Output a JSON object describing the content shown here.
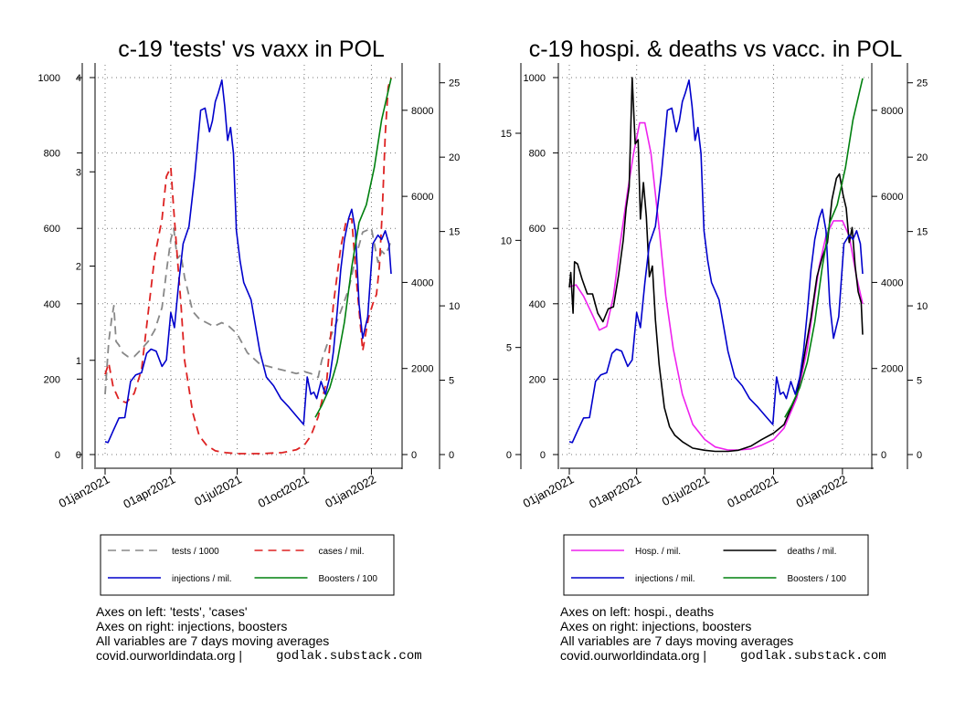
{
  "chart_data": [
    {
      "type": "line",
      "title": "c-19 'tests' vs vaxx in POL",
      "x_ticks": [
        "01jan2021",
        "01apr2021",
        "01jul2021",
        "01oct2021",
        "01jan2022"
      ],
      "axes": {
        "left_outer": {
          "ticks": [
            "0",
            "200",
            "400",
            "600",
            "800",
            "1000"
          ],
          "range": [
            0,
            1000
          ]
        },
        "left_inner": {
          "ticks": [
            "0",
            "1",
            "2",
            "3",
            "4"
          ],
          "range": [
            0,
            4
          ]
        },
        "right_inner": {
          "ticks": [
            "0",
            "2000",
            "4000",
            "6000",
            "8000"
          ],
          "range": [
            0,
            8760
          ]
        },
        "right_outer": {
          "ticks": [
            "0",
            "5",
            "10",
            "15",
            "20",
            "25"
          ],
          "range": [
            0,
            25.35
          ]
        }
      },
      "series": [
        {
          "name": "tests / 1000",
          "color": "#888888",
          "style": "dashed",
          "axis": "left_outer",
          "x": [
            "2021-01-01",
            "2021-01-06",
            "2021-01-10",
            "2021-01-13",
            "2021-01-16",
            "2021-01-20",
            "2021-01-25",
            "2021-02-01",
            "2021-02-10",
            "2021-02-20",
            "2021-03-01",
            "2021-03-10",
            "2021-03-20",
            "2021-03-27",
            "2021-04-01",
            "2021-04-05",
            "2021-04-10",
            "2021-04-15",
            "2021-04-20",
            "2021-04-25",
            "2021-05-01",
            "2021-05-10",
            "2021-05-20",
            "2021-05-30",
            "2021-06-10",
            "2021-06-20",
            "2021-07-01",
            "2021-07-15",
            "2021-08-01",
            "2021-08-20",
            "2021-09-10",
            "2021-09-20",
            "2021-10-01",
            "2021-10-10",
            "2021-10-20",
            "2021-10-25",
            "2021-11-01",
            "2021-11-10",
            "2021-11-20",
            "2021-12-01",
            "2021-12-10",
            "2021-12-20",
            "2022-01-01",
            "2022-01-10",
            "2022-01-15",
            "2022-01-20",
            "2022-01-25",
            "2022-01-28"
          ],
          "y": [
            160,
            300,
            360,
            395,
            300,
            290,
            270,
            260,
            260,
            280,
            300,
            330,
            390,
            500,
            570,
            600,
            520,
            530,
            470,
            430,
            380,
            360,
            350,
            340,
            350,
            340,
            320,
            270,
            240,
            230,
            220,
            215,
            220,
            215,
            205,
            250,
            290,
            330,
            380,
            440,
            520,
            590,
            600,
            510,
            540,
            530,
            550,
            570
          ]
        },
        {
          "name": "cases / mil.",
          "color": "#dd2222",
          "style": "dashed",
          "axis": "left_inner",
          "x": [
            "2021-01-01",
            "2021-01-06",
            "2021-01-12",
            "2021-01-20",
            "2021-01-30",
            "2021-02-10",
            "2021-02-20",
            "2021-03-01",
            "2021-03-10",
            "2021-03-20",
            "2021-03-26",
            "2021-04-01",
            "2021-04-05",
            "2021-04-10",
            "2021-04-15",
            "2021-04-20",
            "2021-05-01",
            "2021-05-10",
            "2021-05-20",
            "2021-06-01",
            "2021-06-15",
            "2021-07-01",
            "2021-08-01",
            "2021-09-01",
            "2021-09-20",
            "2021-10-01",
            "2021-10-10",
            "2021-10-20",
            "2021-11-01",
            "2021-11-10",
            "2021-11-20",
            "2021-11-28",
            "2021-12-05",
            "2021-12-12",
            "2021-12-20",
            "2021-12-28",
            "2022-01-03",
            "2022-01-08",
            "2022-01-12",
            "2022-01-16",
            "2022-01-20",
            "2022-01-24",
            "2022-01-28"
          ],
          "y": [
            0.85,
            0.97,
            0.72,
            0.58,
            0.55,
            0.65,
            0.9,
            1.5,
            2.1,
            2.5,
            2.95,
            3.05,
            2.6,
            2.1,
            1.6,
            1.0,
            0.45,
            0.2,
            0.1,
            0.04,
            0.02,
            0.01,
            0.01,
            0.02,
            0.05,
            0.1,
            0.2,
            0.4,
            0.8,
            1.6,
            2.2,
            2.5,
            2.5,
            1.8,
            1.1,
            1.45,
            1.6,
            1.7,
            2.0,
            2.6,
            3.4,
            3.9,
            4.0
          ]
        },
        {
          "name": "injections / mil.",
          "color": "#0000cc",
          "style": "solid",
          "axis": "right_inner",
          "x": [
            "2021-01-01",
            "2021-01-05",
            "2021-01-12",
            "2021-01-20",
            "2021-01-28",
            "2021-02-05",
            "2021-02-12",
            "2021-02-20",
            "2021-02-27",
            "2021-03-05",
            "2021-03-12",
            "2021-03-20",
            "2021-03-26",
            "2021-04-01",
            "2021-04-06",
            "2021-04-12",
            "2021-04-18",
            "2021-04-26",
            "2021-05-04",
            "2021-05-12",
            "2021-05-18",
            "2021-05-24",
            "2021-05-28",
            "2021-06-01",
            "2021-06-05",
            "2021-06-10",
            "2021-06-14",
            "2021-06-18",
            "2021-06-22",
            "2021-06-26",
            "2021-06-30",
            "2021-07-05",
            "2021-07-10",
            "2021-07-20",
            "2021-08-01",
            "2021-08-10",
            "2021-08-20",
            "2021-08-30",
            "2021-09-10",
            "2021-09-20",
            "2021-09-30",
            "2021-10-05",
            "2021-10-10",
            "2021-10-14",
            "2021-10-18",
            "2021-10-24",
            "2021-10-30",
            "2021-11-05",
            "2021-11-10",
            "2021-11-15",
            "2021-11-20",
            "2021-11-25",
            "2021-12-01",
            "2021-12-05",
            "2021-12-10",
            "2021-12-15",
            "2021-12-20",
            "2021-12-27",
            "2022-01-03",
            "2022-01-10",
            "2022-01-15",
            "2022-01-20",
            "2022-01-25",
            "2022-01-28"
          ],
          "y": [
            300,
            280,
            550,
            850,
            860,
            1700,
            1850,
            1900,
            2350,
            2450,
            2400,
            2050,
            2200,
            3300,
            2950,
            4000,
            4900,
            5300,
            6500,
            8000,
            8050,
            7500,
            7750,
            8200,
            8400,
            8700,
            8100,
            7300,
            7600,
            7000,
            5200,
            4500,
            4000,
            3600,
            2400,
            1800,
            1600,
            1300,
            1100,
            900,
            700,
            1800,
            1400,
            1450,
            1300,
            1700,
            1400,
            1800,
            2400,
            3300,
            4300,
            5000,
            5500,
            5700,
            5200,
            3500,
            2700,
            3200,
            4900,
            5100,
            5000,
            5200,
            4900,
            4200
          ]
        },
        {
          "name": "Boosters / 100",
          "color": "#00800f",
          "style": "solid",
          "axis": "right_outer",
          "x": [
            "2021-10-16",
            "2021-10-25",
            "2021-11-05",
            "2021-11-15",
            "2021-11-25",
            "2021-12-05",
            "2021-12-15",
            "2021-12-25",
            "2022-01-05",
            "2022-01-15",
            "2022-01-28"
          ],
          "y": [
            2.5,
            3.3,
            4.5,
            6.2,
            8.9,
            12.6,
            15.6,
            16.8,
            19.3,
            22.5,
            25.3
          ]
        }
      ],
      "legend_position": "bottom"
    },
    {
      "type": "line",
      "title": "c-19 hospi. & deaths vs vacc. in POL",
      "x_ticks": [
        "01jan2021",
        "01apr2021",
        "01jul2021",
        "01oct2021",
        "01jan2022"
      ],
      "axes": {
        "left_outer": {
          "ticks": [
            "0",
            "5",
            "10",
            "15"
          ],
          "range": [
            0,
            17.6
          ]
        },
        "left_inner": {
          "ticks": [
            "0",
            "200",
            "400",
            "600",
            "800",
            "1000"
          ],
          "range": [
            0,
            1000
          ]
        },
        "right_inner": {
          "ticks": [
            "0",
            "2000",
            "4000",
            "6000",
            "8000"
          ],
          "range": [
            0,
            8760
          ]
        },
        "right_outer": {
          "ticks": [
            "0",
            "5",
            "10",
            "15",
            "20",
            "25"
          ],
          "range": [
            0,
            25.35
          ]
        }
      },
      "series": [
        {
          "name": "Hosp. / mil.",
          "color": "#ee22ee",
          "style": "solid",
          "axis": "left_inner",
          "x": [
            "2021-01-01",
            "2021-01-10",
            "2021-01-20",
            "2021-02-01",
            "2021-02-10",
            "2021-02-20",
            "2021-03-01",
            "2021-03-10",
            "2021-03-20",
            "2021-03-28",
            "2021-04-05",
            "2021-04-12",
            "2021-04-20",
            "2021-05-01",
            "2021-05-10",
            "2021-05-20",
            "2021-06-01",
            "2021-06-15",
            "2021-07-01",
            "2021-07-15",
            "2021-08-01",
            "2021-08-15",
            "2021-09-01",
            "2021-09-15",
            "2021-10-01",
            "2021-10-15",
            "2021-11-01",
            "2021-11-15",
            "2021-11-25",
            "2021-12-01",
            "2021-12-10",
            "2021-12-20",
            "2022-01-01",
            "2022-01-10",
            "2022-01-20",
            "2022-01-28"
          ],
          "y": [
            445,
            450,
            420,
            370,
            330,
            340,
            420,
            560,
            700,
            800,
            880,
            880,
            800,
            600,
            420,
            280,
            160,
            80,
            40,
            20,
            12,
            12,
            15,
            25,
            40,
            70,
            150,
            280,
            420,
            500,
            580,
            620,
            620,
            580,
            470,
            400
          ]
        },
        {
          "name": "deaths / mil.",
          "color": "#000000",
          "style": "solid",
          "axis": "left_outer",
          "x": [
            "2021-01-01",
            "2021-01-03",
            "2021-01-06",
            "2021-01-08",
            "2021-01-12",
            "2021-01-18",
            "2021-01-25",
            "2021-02-01",
            "2021-02-08",
            "2021-02-15",
            "2021-02-22",
            "2021-03-01",
            "2021-03-08",
            "2021-03-14",
            "2021-03-18",
            "2021-03-22",
            "2021-03-26",
            "2021-03-30",
            "2021-04-03",
            "2021-04-06",
            "2021-04-10",
            "2021-04-14",
            "2021-04-18",
            "2021-04-22",
            "2021-04-26",
            "2021-05-01",
            "2021-05-08",
            "2021-05-15",
            "2021-05-22",
            "2021-06-01",
            "2021-06-15",
            "2021-07-01",
            "2021-07-15",
            "2021-08-01",
            "2021-08-15",
            "2021-09-01",
            "2021-09-15",
            "2021-10-01",
            "2021-10-15",
            "2021-11-01",
            "2021-11-10",
            "2021-11-20",
            "2021-11-28",
            "2021-12-05",
            "2021-12-12",
            "2021-12-18",
            "2021-12-24",
            "2021-12-28",
            "2022-01-02",
            "2022-01-06",
            "2022-01-10",
            "2022-01-14",
            "2022-01-18",
            "2022-01-22",
            "2022-01-26",
            "2022-01-28"
          ],
          "y": [
            7.8,
            8.5,
            6.6,
            9.0,
            8.9,
            8.2,
            7.5,
            7.5,
            6.6,
            6.2,
            6.8,
            6.9,
            8.4,
            10.0,
            11.5,
            12.5,
            17.6,
            14.5,
            14.7,
            11.0,
            12.7,
            11.1,
            8.3,
            8.8,
            6.3,
            4.2,
            2.2,
            1.3,
            0.9,
            0.6,
            0.3,
            0.2,
            0.15,
            0.15,
            0.2,
            0.4,
            0.7,
            1.0,
            1.4,
            2.8,
            4.4,
            6.4,
            8.3,
            9.2,
            9.9,
            11.9,
            12.9,
            13.1,
            12.1,
            11.5,
            9.9,
            10.6,
            8.8,
            7.6,
            7.1,
            5.6
          ]
        },
        {
          "name": "injections / mil.",
          "color": "#0000cc",
          "style": "solid",
          "axis": "right_inner",
          "x": [
            "2021-01-01",
            "2021-01-05",
            "2021-01-12",
            "2021-01-20",
            "2021-01-28",
            "2021-02-05",
            "2021-02-12",
            "2021-02-20",
            "2021-02-27",
            "2021-03-05",
            "2021-03-12",
            "2021-03-20",
            "2021-03-26",
            "2021-04-01",
            "2021-04-06",
            "2021-04-12",
            "2021-04-18",
            "2021-04-26",
            "2021-05-04",
            "2021-05-12",
            "2021-05-18",
            "2021-05-24",
            "2021-05-28",
            "2021-06-01",
            "2021-06-05",
            "2021-06-10",
            "2021-06-14",
            "2021-06-18",
            "2021-06-22",
            "2021-06-26",
            "2021-06-30",
            "2021-07-05",
            "2021-07-10",
            "2021-07-20",
            "2021-08-01",
            "2021-08-10",
            "2021-08-20",
            "2021-08-30",
            "2021-09-10",
            "2021-09-20",
            "2021-09-30",
            "2021-10-05",
            "2021-10-10",
            "2021-10-14",
            "2021-10-18",
            "2021-10-24",
            "2021-10-30",
            "2021-11-05",
            "2021-11-10",
            "2021-11-15",
            "2021-11-20",
            "2021-11-25",
            "2021-12-01",
            "2021-12-05",
            "2021-12-10",
            "2021-12-15",
            "2021-12-20",
            "2021-12-27",
            "2022-01-03",
            "2022-01-10",
            "2022-01-15",
            "2022-01-20",
            "2022-01-25",
            "2022-01-28"
          ],
          "y": [
            300,
            280,
            550,
            850,
            860,
            1700,
            1850,
            1900,
            2350,
            2450,
            2400,
            2050,
            2200,
            3300,
            2950,
            4000,
            4900,
            5300,
            6500,
            8000,
            8050,
            7500,
            7750,
            8200,
            8400,
            8700,
            8100,
            7300,
            7600,
            7000,
            5200,
            4500,
            4000,
            3600,
            2400,
            1800,
            1600,
            1300,
            1100,
            900,
            700,
            1800,
            1400,
            1450,
            1300,
            1700,
            1400,
            1800,
            2400,
            3300,
            4300,
            5000,
            5500,
            5700,
            5200,
            3500,
            2700,
            3200,
            4900,
            5100,
            5000,
            5200,
            4900,
            4200
          ]
        },
        {
          "name": "Boosters / 100",
          "color": "#00800f",
          "style": "solid",
          "axis": "right_outer",
          "x": [
            "2021-10-16",
            "2021-10-25",
            "2021-11-05",
            "2021-11-15",
            "2021-11-25",
            "2021-12-05",
            "2021-12-15",
            "2021-12-25",
            "2022-01-05",
            "2022-01-15",
            "2022-01-28"
          ],
          "y": [
            2.5,
            3.3,
            4.5,
            6.2,
            8.9,
            12.6,
            15.6,
            16.8,
            19.3,
            22.5,
            25.3
          ]
        }
      ],
      "legend_position": "bottom"
    }
  ],
  "notes": [
    [
      "Axes on left: 'tests', 'cases'",
      "Axes on right: injections, boosters",
      "All variables are 7 days moving averages",
      "covid.ourworldindata.org |"
    ],
    [
      "Axes on left: hospi., deaths",
      "Axes on right: injections, boosters",
      "All variables are 7 days moving averages",
      "covid.ourworldindata.org |"
    ]
  ],
  "credit": "godlak.substack.com"
}
